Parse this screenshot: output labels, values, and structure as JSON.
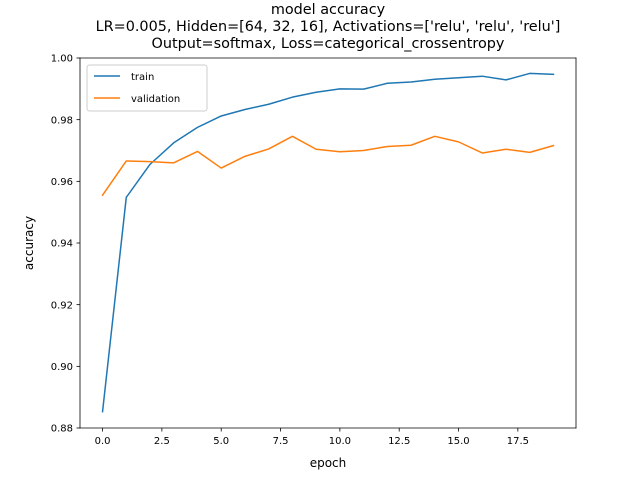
{
  "chart_data": {
    "type": "line",
    "title_lines": [
      "model accuracy",
      "LR=0.005, Hidden=[64, 32, 16], Activations=['relu', 'relu', 'relu']",
      "Output=softmax, Loss=categorical_crossentropy"
    ],
    "xlabel": "epoch",
    "ylabel": "accuracy",
    "xlim": [
      -0.95,
      19.95
    ],
    "ylim": [
      0.88,
      1.0
    ],
    "x_ticks": [
      0.0,
      2.5,
      5.0,
      7.5,
      10.0,
      12.5,
      15.0,
      17.5
    ],
    "x_tick_labels": [
      "0.0",
      "2.5",
      "5.0",
      "7.5",
      "10.0",
      "12.5",
      "15.0",
      "17.5"
    ],
    "y_ticks": [
      0.88,
      0.9,
      0.92,
      0.94,
      0.96,
      0.98,
      1.0
    ],
    "y_tick_labels": [
      "0.88",
      "0.90",
      "0.92",
      "0.94",
      "0.96",
      "0.98",
      "1.00"
    ],
    "grid": false,
    "legend_position": "upper-left",
    "x": [
      0,
      1,
      2,
      3,
      4,
      5,
      6,
      7,
      8,
      9,
      10,
      11,
      12,
      13,
      14,
      15,
      16,
      17,
      18,
      19
    ],
    "series": [
      {
        "name": "train",
        "color": "#1f77b4",
        "values": [
          0.8853,
          0.9548,
          0.9655,
          0.9725,
          0.9775,
          0.9812,
          0.9833,
          0.985,
          0.9873,
          0.9889,
          0.99,
          0.9899,
          0.9918,
          0.9922,
          0.9931,
          0.9936,
          0.9941,
          0.9929,
          0.995,
          0.9947
        ]
      },
      {
        "name": "validation",
        "color": "#ff7f0e",
        "values": [
          0.9555,
          0.9666,
          0.9664,
          0.966,
          0.9697,
          0.9643,
          0.9681,
          0.9705,
          0.9746,
          0.9704,
          0.9696,
          0.97,
          0.9713,
          0.9717,
          0.9746,
          0.9728,
          0.9692,
          0.9704,
          0.9694,
          0.9716
        ]
      }
    ]
  }
}
